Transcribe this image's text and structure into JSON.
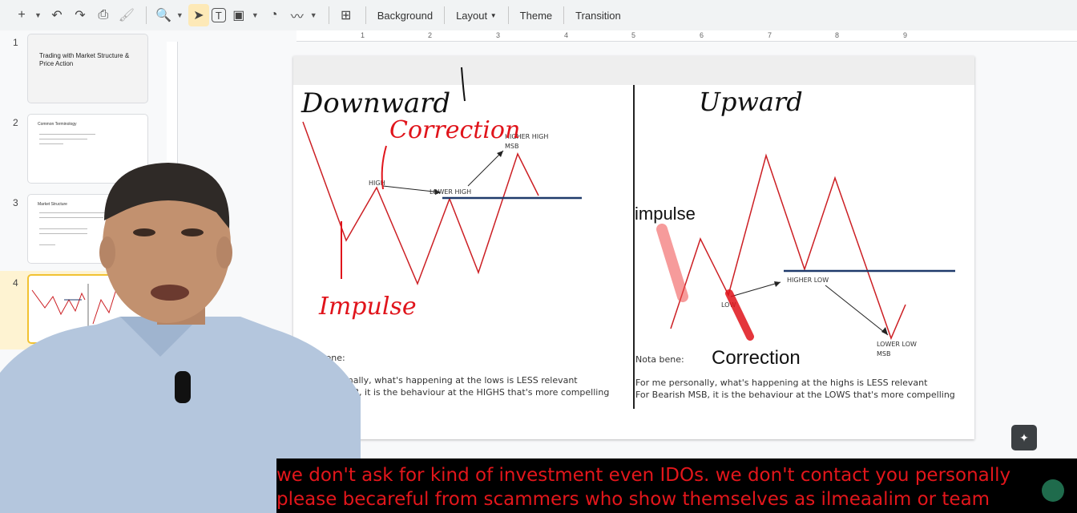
{
  "toolbar": {
    "items": [
      "Background",
      "Layout",
      "Theme",
      "Transition"
    ]
  },
  "ruler": {
    "ticks": [
      "1",
      "2",
      "3",
      "4",
      "5",
      "6",
      "7",
      "8",
      "9"
    ]
  },
  "filmstrip": {
    "slides": [
      {
        "number": "1",
        "title": "Trading with Market Structure & Price Action"
      },
      {
        "number": "2",
        "title": "Common Terminology"
      },
      {
        "number": "3",
        "title": "Market Structure"
      },
      {
        "number": "4",
        "title": ""
      }
    ]
  },
  "slide": {
    "left": {
      "handwritten_title": "Downward",
      "handwritten_correction": "Correction",
      "handwritten_impulse": "Impulse",
      "labels": {
        "high": "HIGH",
        "lower_high": "LOWER HIGH",
        "higher_high": "HIGHER HIGH",
        "msb": "MSB"
      },
      "nota": "Nota bene:",
      "note_1": "ersonally, what's happening at the lows is LESS relevant",
      "note_2": "MSB, it is the behaviour at the HIGHS that's more compelling"
    },
    "right": {
      "handwritten_title": "Upward",
      "impulse": "impulse",
      "correction": "Correction",
      "labels": {
        "higher_low": "HIGHER LOW",
        "low": "LOW",
        "lower_low": "LOWER LOW",
        "msb": "MSB"
      },
      "nota": "Nota bene:",
      "note_1": "For me personally, what's happening at the highs is LESS relevant",
      "note_2": "For Bearish MSB, it is the behaviour at the LOWS that's more compelling"
    }
  },
  "subtitles": {
    "line1": "we don't ask for kind of investment even IDOs. we don't contact you personally",
    "line2": "please becareful from scammers who show themselves as ilmeaalim or team"
  },
  "colors": {
    "accent": "#f1c232",
    "red": "#cc1f24",
    "navy": "#1f3a6b",
    "subtitle": "#e3161b"
  }
}
